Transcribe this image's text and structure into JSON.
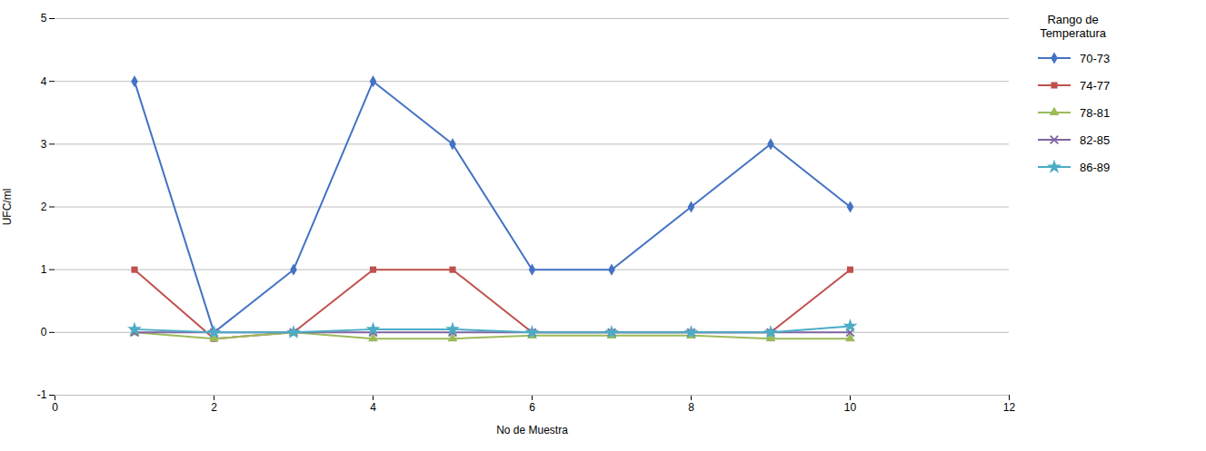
{
  "chart_data": {
    "type": "line",
    "xlabel": "No de Muestra",
    "ylabel": "UFC/ml",
    "legend_title": "Rango de\nTemperatura",
    "x": [
      1,
      2,
      3,
      4,
      5,
      6,
      7,
      8,
      9,
      10
    ],
    "series": [
      {
        "name": "70-73",
        "color": "#4472C4",
        "marker": "diamond",
        "values": [
          4,
          0,
          1,
          4,
          3,
          1,
          1,
          2,
          3,
          2
        ]
      },
      {
        "name": "74-77",
        "color": "#C0504D",
        "marker": "square",
        "values": [
          1,
          -0.1,
          0,
          1,
          1,
          0,
          0,
          0,
          0,
          1
        ]
      },
      {
        "name": "78-81",
        "color": "#9BBB59",
        "marker": "triangle",
        "values": [
          0,
          -0.1,
          0,
          -0.1,
          -0.1,
          -0.05,
          -0.05,
          -0.05,
          -0.1,
          -0.1
        ]
      },
      {
        "name": "82-85",
        "color": "#8064A2",
        "marker": "x",
        "values": [
          0,
          0,
          0,
          0,
          0,
          0,
          0,
          0,
          0,
          0
        ]
      },
      {
        "name": "86-89",
        "color": "#4BACC6",
        "marker": "star",
        "values": [
          0.05,
          0,
          0,
          0.05,
          0.05,
          0,
          0,
          0,
          0,
          0.1
        ]
      }
    ],
    "xlim": [
      0,
      12
    ],
    "ylim": [
      -1,
      5
    ],
    "xticks": [
      0,
      2,
      4,
      6,
      8,
      10,
      12
    ],
    "yticks": [
      -1,
      0,
      1,
      2,
      3,
      4,
      5
    ],
    "grid": "y",
    "legend": "right"
  }
}
